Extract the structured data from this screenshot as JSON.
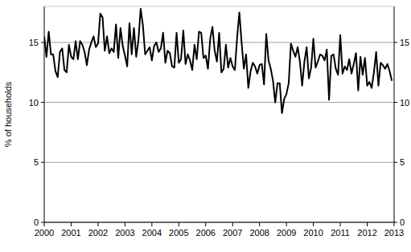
{
  "chart_data": {
    "type": "line",
    "y_label": "% of households",
    "color": "#000000",
    "grid": true,
    "x": [
      2000,
      2000.083,
      2000.167,
      2000.25,
      2000.333,
      2000.417,
      2000.5,
      2000.583,
      2000.667,
      2000.75,
      2000.833,
      2000.917,
      2001,
      2001.083,
      2001.167,
      2001.25,
      2001.333,
      2001.417,
      2001.5,
      2001.583,
      2001.667,
      2001.75,
      2001.833,
      2001.917,
      2002,
      2002.083,
      2002.167,
      2002.25,
      2002.333,
      2002.417,
      2002.5,
      2002.583,
      2002.667,
      2002.75,
      2002.833,
      2002.917,
      2003,
      2003.083,
      2003.167,
      2003.25,
      2003.333,
      2003.417,
      2003.5,
      2003.583,
      2003.667,
      2003.75,
      2003.833,
      2003.917,
      2004,
      2004.083,
      2004.167,
      2004.25,
      2004.333,
      2004.417,
      2004.5,
      2004.583,
      2004.667,
      2004.75,
      2004.833,
      2004.917,
      2005,
      2005.083,
      2005.167,
      2005.25,
      2005.333,
      2005.417,
      2005.5,
      2005.583,
      2005.667,
      2005.75,
      2005.833,
      2005.917,
      2006,
      2006.083,
      2006.167,
      2006.25,
      2006.333,
      2006.417,
      2006.5,
      2006.583,
      2006.667,
      2006.75,
      2006.833,
      2006.917,
      2007,
      2007.083,
      2007.167,
      2007.25,
      2007.333,
      2007.417,
      2007.5,
      2007.583,
      2007.667,
      2007.75,
      2007.833,
      2007.917,
      2008,
      2008.083,
      2008.167,
      2008.25,
      2008.333,
      2008.417,
      2008.5,
      2008.583,
      2008.667,
      2008.75,
      2008.833,
      2008.917,
      2009,
      2009.083,
      2009.167,
      2009.25,
      2009.333,
      2009.417,
      2009.5,
      2009.583,
      2009.667,
      2009.75,
      2009.833,
      2009.917,
      2010,
      2010.083,
      2010.167,
      2010.25,
      2010.333,
      2010.417,
      2010.5,
      2010.583,
      2010.667,
      2010.75,
      2010.833,
      2010.917,
      2011,
      2011.083,
      2011.167,
      2011.25,
      2011.333,
      2011.417,
      2011.5,
      2011.583,
      2011.667,
      2011.75,
      2011.833,
      2011.917,
      2012,
      2012.083,
      2012.167,
      2012.25,
      2012.333,
      2012.417,
      2012.5,
      2012.583,
      2012.667,
      2012.75,
      2012.833,
      2012.917
    ],
    "values": [
      15.5,
      13.8,
      15.9,
      14.0,
      14.0,
      12.6,
      12.1,
      14.2,
      14.5,
      12.7,
      12.5,
      14.8,
      13.8,
      13.6,
      15.1,
      13.6,
      15.1,
      14.8,
      14.2,
      13.1,
      14.4,
      15.0,
      15.5,
      14.6,
      14.9,
      17.4,
      17.1,
      14.3,
      15.5,
      14.1,
      14.5,
      14.2,
      16.5,
      13.7,
      16.2,
      14.7,
      13.9,
      13.0,
      16.6,
      14.0,
      16.2,
      13.8,
      15.2,
      17.8,
      16.4,
      14.0,
      14.3,
      14.6,
      13.5,
      14.7,
      15.0,
      14.2,
      14.5,
      15.8,
      13.3,
      14.3,
      14.1,
      13.0,
      12.9,
      15.8,
      13.3,
      13.6,
      16.0,
      13.2,
      14.0,
      13.5,
      12.7,
      14.8,
      13.6,
      15.9,
      15.8,
      13.7,
      13.9,
      12.8,
      15.3,
      16.3,
      14.3,
      13.4,
      15.8,
      12.5,
      12.8,
      14.8,
      12.9,
      13.7,
      13.0,
      12.7,
      15.4,
      17.5,
      15.0,
      12.8,
      14.0,
      11.2,
      12.6,
      13.3,
      13.0,
      12.4,
      13.1,
      13.2,
      11.5,
      15.7,
      13.5,
      12.8,
      11.8,
      10.0,
      11.6,
      11.6,
      9.1,
      10.3,
      10.7,
      11.6,
      14.9,
      14.3,
      13.8,
      14.6,
      13.4,
      11.4,
      13.4,
      14.6,
      12.0,
      12.9,
      15.3,
      12.9,
      13.4,
      14.0,
      13.9,
      13.5,
      14.4,
      10.2,
      13.9,
      14.0,
      12.8,
      12.3,
      15.6,
      12.4,
      13.0,
      12.7,
      13.6,
      12.4,
      13.2,
      14.1,
      11.0,
      13.8,
      12.3,
      13.7,
      11.4,
      11.7,
      11.2,
      12.5,
      14.2,
      11.4,
      13.3,
      13.1,
      12.8,
      13.2,
      12.6,
      11.8
    ],
    "xlim": [
      2000,
      2013
    ],
    "xticks": [
      2000,
      2001,
      2002,
      2003,
      2004,
      2005,
      2006,
      2007,
      2008,
      2009,
      2010,
      2011,
      2012,
      2013
    ],
    "ylim": [
      0,
      18
    ],
    "yticks": [
      0,
      5,
      10,
      15
    ]
  }
}
